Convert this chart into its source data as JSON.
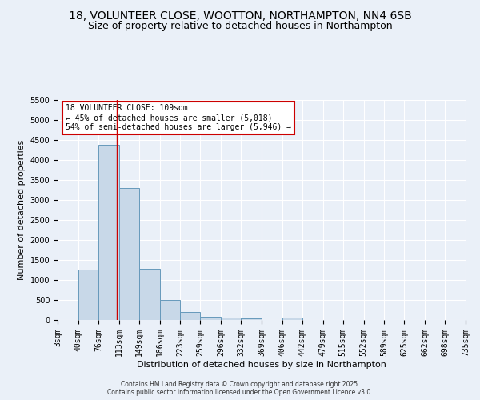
{
  "title1": "18, VOLUNTEER CLOSE, WOOTTON, NORTHAMPTON, NN4 6SB",
  "title2": "Size of property relative to detached houses in Northampton",
  "xlabel": "Distribution of detached houses by size in Northampton",
  "ylabel": "Number of detached properties",
  "bin_edges": [
    3,
    40,
    76,
    113,
    149,
    186,
    223,
    259,
    296,
    332,
    369,
    406,
    442,
    479,
    515,
    552,
    589,
    625,
    662,
    698,
    735
  ],
  "bar_heights": [
    0,
    1270,
    4380,
    3300,
    1280,
    500,
    205,
    90,
    65,
    50,
    0,
    55,
    0,
    0,
    0,
    0,
    0,
    0,
    0,
    0
  ],
  "bar_color": "#c8d8e8",
  "bar_edge_color": "#6699bb",
  "property_size": 109,
  "vline_color": "#cc0000",
  "annotation_text": "18 VOLUNTEER CLOSE: 109sqm\n← 45% of detached houses are smaller (5,018)\n54% of semi-detached houses are larger (5,946) →",
  "annotation_box_color": "#ffffff",
  "annotation_edge_color": "#cc0000",
  "ylim": [
    0,
    5500
  ],
  "yticks": [
    0,
    500,
    1000,
    1500,
    2000,
    2500,
    3000,
    3500,
    4000,
    4500,
    5000,
    5500
  ],
  "background_color": "#eaf0f8",
  "grid_color": "#ffffff",
  "footer1": "Contains HM Land Registry data © Crown copyright and database right 2025.",
  "footer2": "Contains public sector information licensed under the Open Government Licence v3.0.",
  "title_fontsize": 10,
  "subtitle_fontsize": 9,
  "axis_label_fontsize": 8,
  "tick_fontsize": 7
}
